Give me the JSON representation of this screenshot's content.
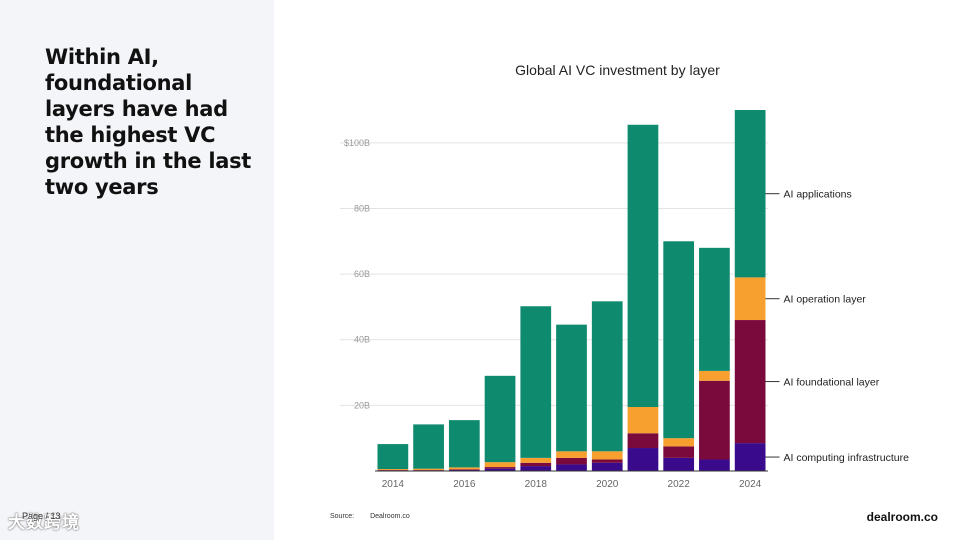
{
  "slide": {
    "headline": "Within AI, foundational layers have had the highest VC growth in the last two years",
    "page_label": "Page / 13",
    "watermark": "大数跨境",
    "source_label": "Source:",
    "source_value": "Dealroom.co",
    "brand": "dealroom.co"
  },
  "chart_data": {
    "type": "bar",
    "stacked": true,
    "title": "Global AI VC investment by layer",
    "xlabel": "",
    "ylabel": "",
    "ylim": [
      0,
      110
    ],
    "yticks": [
      {
        "value": 20,
        "label": "20B"
      },
      {
        "value": 40,
        "label": "40B"
      },
      {
        "value": 60,
        "label": "60B"
      },
      {
        "value": 80,
        "label": "80B"
      },
      {
        "value": 100,
        "label": "$100B"
      }
    ],
    "categories": [
      "2014",
      "2015",
      "2016",
      "2017",
      "2018",
      "2019",
      "2020",
      "2021",
      "2022",
      "2023",
      "2024"
    ],
    "xtick_labels": [
      "2014",
      "",
      "2016",
      "",
      "2018",
      "",
      "2020",
      "",
      "2022",
      "",
      "2024"
    ],
    "grid": true,
    "series": [
      {
        "name": "AI computing infrastructure",
        "color": "#3a0a8c",
        "values": [
          0.2,
          0.2,
          0.3,
          0.7,
          1.5,
          2.0,
          2.5,
          7.0,
          4.0,
          3.5,
          8.5
        ]
      },
      {
        "name": "AI foundational layer",
        "color": "#7a0a3c",
        "values": [
          0.1,
          0.1,
          0.2,
          0.5,
          1.0,
          2.0,
          1.0,
          4.5,
          3.5,
          24.0,
          37.5
        ]
      },
      {
        "name": "AI operation layer",
        "color": "#f7a030",
        "values": [
          0.3,
          0.4,
          0.6,
          1.5,
          1.5,
          2.0,
          2.5,
          8.0,
          2.5,
          3.0,
          13.0
        ]
      },
      {
        "name": "AI applications",
        "color": "#0e8a6e",
        "values": [
          7.6,
          13.5,
          14.4,
          26.3,
          46.2,
          38.6,
          45.7,
          86.0,
          60.0,
          37.5,
          51.0
        ]
      }
    ],
    "legend": {
      "placement": "right, inline at end of last bar"
    }
  }
}
